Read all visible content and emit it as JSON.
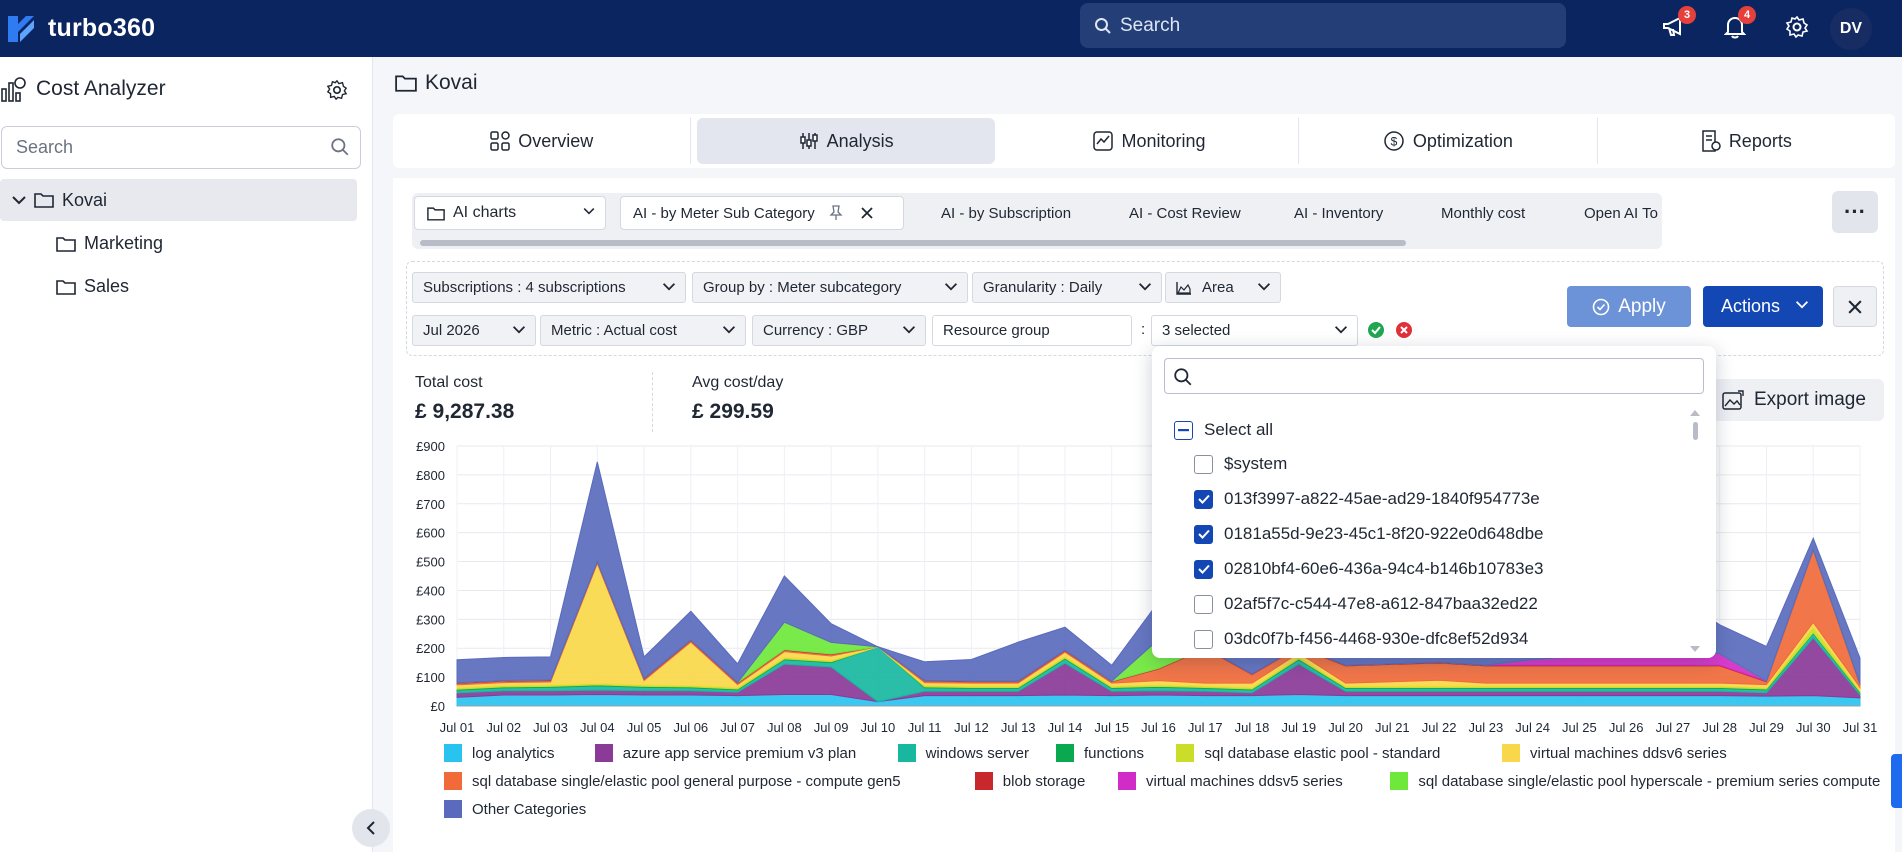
{
  "app": {
    "brand": "turbo360",
    "search_label": "Search",
    "announcements_count": "3",
    "notifications_count": "4",
    "user_initials": "DV"
  },
  "sidebar": {
    "title": "Cost Analyzer",
    "search_placeholder": "Search",
    "tree": [
      {
        "label": "Kovai"
      },
      {
        "label": "Marketing"
      },
      {
        "label": "Sales"
      }
    ]
  },
  "main": {
    "title": "Kovai",
    "tabs": [
      {
        "label": "Overview"
      },
      {
        "label": "Analysis"
      },
      {
        "label": "Monitoring"
      },
      {
        "label": "Optimization"
      },
      {
        "label": "Reports"
      }
    ],
    "view_select": "AI charts",
    "view_tabs": [
      {
        "label": "AI - by Meter Sub Category"
      },
      {
        "label": "AI - by Subscription"
      },
      {
        "label": "AI - Cost Review"
      },
      {
        "label": "AI - Inventory"
      },
      {
        "label": "Monthly cost"
      },
      {
        "label": "Open AI To"
      }
    ],
    "more_label": "···"
  },
  "filters": {
    "subscriptions": "Subscriptions : 4 subscriptions",
    "group_by": "Group by : Meter subcategory",
    "granularity": "Granularity : Daily",
    "chart_type": "Area",
    "period": "Jul 2026",
    "metric": "Metric  : Actual cost",
    "currency": "Currency  : GBP",
    "resource_group": "Resource group",
    "colon": ":",
    "selected": "3 selected",
    "apply": "Apply",
    "actions": "Actions"
  },
  "stats": {
    "total_label": "Total cost",
    "total_value": "£ 9,287.38",
    "avg_label": "Avg cost/day",
    "avg_value": "£ 299.59",
    "export": "Export image"
  },
  "dropdown": {
    "select_all": "Select all",
    "options": [
      {
        "label": "$system",
        "checked": false
      },
      {
        "label": "013f3997-a822-45ae-ad29-1840f954773e",
        "checked": true
      },
      {
        "label": "0181a55d-9e23-45c1-8f20-922e0d648dbe",
        "checked": true
      },
      {
        "label": "02810bf4-60e6-436a-94c4-b146b10783e3",
        "checked": true
      },
      {
        "label": "02af5f7c-c544-47e8-a612-847baa32ed22",
        "checked": false
      },
      {
        "label": "03dc0f7b-f456-4468-930e-dfc8ef52d934",
        "checked": false
      }
    ]
  },
  "chart_data": {
    "type": "area",
    "stacked": true,
    "y_ticks": [
      "£0",
      "£100",
      "£200",
      "£300",
      "£400",
      "£500",
      "£600",
      "£700",
      "£800",
      "£900"
    ],
    "ylim": [
      0,
      900
    ],
    "grid": true,
    "legend_position": "bottom",
    "categories": [
      "Jul 01",
      "Jul 02",
      "Jul 03",
      "Jul 04",
      "Jul 05",
      "Jul 06",
      "Jul 07",
      "Jul 08",
      "Jul 09",
      "Jul 10",
      "Jul 11",
      "Jul 12",
      "Jul 13",
      "Jul 14",
      "Jul 15",
      "Jul 16",
      "Jul 17",
      "Jul 18",
      "Jul 19",
      "Jul 20",
      "Jul 21",
      "Jul 22",
      "Jul 23",
      "Jul 24",
      "Jul 25",
      "Jul 26",
      "Jul 27",
      "Jul 28",
      "Jul 29",
      "Jul 30",
      "Jul 31"
    ],
    "series": [
      {
        "name": "log analytics",
        "color": "#29c3f0",
        "values": [
          30,
          38,
          38,
          40,
          38,
          38,
          36,
          40,
          40,
          15,
          36,
          36,
          36,
          38,
          36,
          38,
          36,
          36,
          40,
          36,
          36,
          36,
          36,
          36,
          36,
          36,
          36,
          36,
          34,
          36,
          28
        ]
      },
      {
        "name": "azure app service premium v3 plan",
        "color": "#8a3a97",
        "values": [
          15,
          15,
          15,
          15,
          15,
          15,
          12,
          105,
          95,
          0,
          15,
          15,
          15,
          110,
          15,
          15,
          15,
          10,
          105,
          15,
          15,
          15,
          15,
          15,
          15,
          15,
          15,
          15,
          12,
          200,
          10
        ]
      },
      {
        "name": "windows server",
        "color": "#18b7a0",
        "values": [
          10,
          10,
          12,
          15,
          12,
          10,
          8,
          15,
          15,
          190,
          12,
          10,
          10,
          15,
          10,
          12,
          10,
          10,
          15,
          10,
          10,
          10,
          10,
          10,
          10,
          10,
          10,
          10,
          10,
          15,
          8
        ]
      },
      {
        "name": "functions",
        "color": "#0aa84f",
        "values": [
          3,
          3,
          3,
          3,
          3,
          3,
          3,
          3,
          3,
          0,
          3,
          3,
          3,
          3,
          3,
          3,
          3,
          3,
          3,
          3,
          3,
          3,
          3,
          3,
          3,
          3,
          3,
          3,
          3,
          3,
          3
        ]
      },
      {
        "name": "sql database elastic pool - standard",
        "color": "#c9dd29",
        "values": [
          5,
          5,
          5,
          5,
          5,
          5,
          5,
          5,
          5,
          0,
          5,
          5,
          5,
          5,
          5,
          5,
          5,
          5,
          5,
          5,
          5,
          5,
          5,
          5,
          5,
          5,
          5,
          5,
          5,
          20,
          5
        ]
      },
      {
        "name": "virtual machines ddsv6 series",
        "color": "#f8d84a",
        "values": [
          10,
          10,
          10,
          415,
          15,
          150,
          10,
          20,
          15,
          0,
          10,
          10,
          10,
          15,
          10,
          15,
          10,
          15,
          15,
          10,
          15,
          20,
          10,
          10,
          10,
          10,
          10,
          10,
          10,
          15,
          10
        ]
      },
      {
        "name": "sql database single/elastic pool general purpose - compute gen5",
        "color": "#f06a3a",
        "values": [
          5,
          5,
          5,
          5,
          5,
          5,
          5,
          5,
          5,
          0,
          5,
          5,
          5,
          5,
          5,
          40,
          120,
          30,
          20,
          60,
          60,
          60,
          60,
          60,
          60,
          60,
          60,
          60,
          10,
          250,
          10
        ]
      },
      {
        "name": "blob storage",
        "color": "#c8272b",
        "values": [
          2,
          2,
          2,
          2,
          2,
          2,
          2,
          2,
          2,
          0,
          2,
          2,
          2,
          2,
          2,
          2,
          2,
          2,
          2,
          2,
          2,
          2,
          2,
          2,
          2,
          2,
          2,
          2,
          2,
          2,
          2
        ]
      },
      {
        "name": "virtual machines ddsv5 series",
        "color": "#d12cc8",
        "values": [
          0,
          0,
          0,
          0,
          0,
          0,
          0,
          0,
          0,
          0,
          0,
          0,
          0,
          0,
          0,
          0,
          0,
          0,
          0,
          0,
          0,
          0,
          0,
          20,
          30,
          50,
          50,
          40,
          0,
          0,
          0
        ]
      },
      {
        "name": "sql database single/elastic pool hyperscale - premium series compute",
        "color": "#6ee83a",
        "values": [
          0,
          0,
          0,
          0,
          0,
          0,
          0,
          95,
          40,
          0,
          0,
          0,
          0,
          0,
          0,
          100,
          0,
          0,
          0,
          0,
          0,
          0,
          0,
          0,
          0,
          0,
          0,
          0,
          0,
          0,
          0
        ]
      },
      {
        "name": "Other Categories",
        "color": "#5a6bbd",
        "values": [
          80,
          80,
          80,
          345,
          75,
          100,
          65,
          160,
          65,
          0,
          65,
          75,
          135,
          80,
          55,
          130,
          170,
          100,
          130,
          200,
          200,
          200,
          200,
          200,
          200,
          200,
          200,
          100,
          120,
          40,
          90
        ]
      }
    ]
  }
}
